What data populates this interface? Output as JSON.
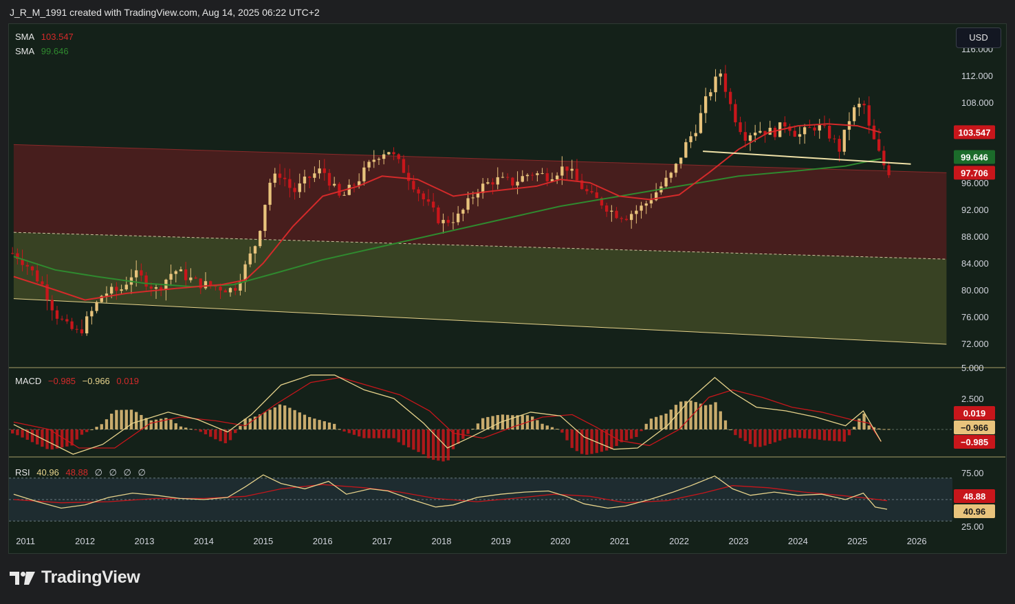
{
  "header": {
    "caption": "J_R_M_1991 created with TradingView.com, Aug 14, 2025 06:22 UTC+2"
  },
  "currency_button": "USD",
  "brand": "TradingView",
  "colors": {
    "up": "#e8c37c",
    "down": "#c8161b",
    "sma_fast": "#d42a2a",
    "sma_slow": "#2f8a2f",
    "macd_line": "#e8d48c",
    "signal_line": "#c8161b",
    "rsi_line": "#e8d48c",
    "rsi_ma": "#c8161b"
  },
  "chart_data": [
    {
      "type": "candlestick",
      "panel": "price",
      "x": [
        "2011",
        "2012",
        "2013",
        "2014",
        "2015",
        "2016",
        "2017",
        "2018",
        "2019",
        "2020",
        "2021",
        "2022",
        "2023",
        "2024",
        "2025",
        "2026"
      ],
      "y_ticks": [
        "72.000",
        "76.000",
        "80.000",
        "84.000",
        "88.000",
        "92.000",
        "96.000",
        "100.000",
        "104.000",
        "108.000",
        "112.000",
        "116.000"
      ],
      "ylim": [
        70,
        118
      ],
      "legend": [
        {
          "name": "SMA",
          "value": "103.547"
        },
        {
          "name": "SMA",
          "value": "99.646"
        }
      ],
      "price_tags": [
        {
          "value": "103.547",
          "kind": "sma_fast"
        },
        {
          "value": "99.646",
          "kind": "sma_slow"
        },
        {
          "value": "97.706",
          "kind": "last_price"
        }
      ],
      "channel_upper_line": [
        [
          2010.8,
          101.7
        ],
        [
          2026.5,
          97.5
        ]
      ],
      "channel_mid_line": [
        [
          2010.8,
          88.6
        ],
        [
          2026.5,
          84.6
        ]
      ],
      "channel_lower_line": [
        [
          2010.8,
          78.7
        ],
        [
          2026.5,
          71.9
        ]
      ],
      "neckline": [
        [
          2022.4,
          100.7
        ],
        [
          2025.9,
          98.8
        ]
      ],
      "close_path": [
        [
          2010.8,
          85.5
        ],
        [
          2011.0,
          84.0
        ],
        [
          2011.3,
          80.5
        ],
        [
          2011.5,
          76.5
        ],
        [
          2011.7,
          74.5
        ],
        [
          2011.9,
          73.5
        ],
        [
          2012.1,
          76.5
        ],
        [
          2012.3,
          79.5
        ],
        [
          2012.6,
          80.0
        ],
        [
          2012.8,
          82.5
        ],
        [
          2013.0,
          81.5
        ],
        [
          2013.2,
          80.0
        ],
        [
          2013.5,
          83.0
        ],
        [
          2013.7,
          82.0
        ],
        [
          2013.9,
          81.0
        ],
        [
          2014.2,
          80.5
        ],
        [
          2014.5,
          80.0
        ],
        [
          2014.7,
          83.5
        ],
        [
          2014.9,
          87.5
        ],
        [
          2015.1,
          96.0
        ],
        [
          2015.3,
          97.5
        ],
        [
          2015.5,
          94.5
        ],
        [
          2015.8,
          97.0
        ],
        [
          2016.0,
          98.0
        ],
        [
          2016.3,
          93.5
        ],
        [
          2016.6,
          96.5
        ],
        [
          2016.9,
          100.0
        ],
        [
          2017.1,
          101.0
        ],
        [
          2017.4,
          97.5
        ],
        [
          2017.7,
          93.5
        ],
        [
          2018.0,
          90.0
        ],
        [
          2018.3,
          91.0
        ],
        [
          2018.6,
          95.0
        ],
        [
          2018.9,
          96.5
        ],
        [
          2019.2,
          96.0
        ],
        [
          2019.5,
          97.5
        ],
        [
          2019.8,
          97.0
        ],
        [
          2020.1,
          98.5
        ],
        [
          2020.3,
          96.0
        ],
        [
          2020.5,
          94.0
        ],
        [
          2020.7,
          93.0
        ],
        [
          2020.9,
          91.5
        ],
        [
          2021.1,
          91.0
        ],
        [
          2021.4,
          92.5
        ],
        [
          2021.7,
          95.5
        ],
        [
          2021.9,
          97.5
        ],
        [
          2022.1,
          101.5
        ],
        [
          2022.3,
          104.5
        ],
        [
          2022.5,
          109.5
        ],
        [
          2022.7,
          112.5
        ],
        [
          2022.9,
          106.5
        ],
        [
          2023.1,
          103.0
        ],
        [
          2023.3,
          104.0
        ],
        [
          2023.6,
          103.5
        ],
        [
          2023.8,
          105.0
        ],
        [
          2024.0,
          103.0
        ],
        [
          2024.3,
          104.5
        ],
        [
          2024.5,
          103.5
        ],
        [
          2024.7,
          101.0
        ],
        [
          2024.9,
          106.5
        ],
        [
          2025.1,
          108.0
        ],
        [
          2025.2,
          104.0
        ],
        [
          2025.4,
          99.5
        ],
        [
          2025.5,
          97.7
        ]
      ],
      "sma_fast_path": [
        [
          2010.8,
          82.0
        ],
        [
          2011.5,
          80.0
        ],
        [
          2012.0,
          78.5
        ],
        [
          2012.7,
          79.5
        ],
        [
          2013.5,
          80.2
        ],
        [
          2014.3,
          80.8
        ],
        [
          2014.7,
          81.5
        ],
        [
          2015.0,
          84.0
        ],
        [
          2015.5,
          89.5
        ],
        [
          2016.0,
          94.0
        ],
        [
          2016.6,
          95.5
        ],
        [
          2017.0,
          97.0
        ],
        [
          2017.6,
          96.5
        ],
        [
          2018.2,
          94.0
        ],
        [
          2018.6,
          94.5
        ],
        [
          2019.1,
          95.0
        ],
        [
          2019.6,
          95.5
        ],
        [
          2020.0,
          96.5
        ],
        [
          2020.5,
          96.0
        ],
        [
          2021.0,
          94.0
        ],
        [
          2021.5,
          93.5
        ],
        [
          2022.0,
          94.2
        ],
        [
          2022.5,
          97.5
        ],
        [
          2023.0,
          101.0
        ],
        [
          2023.5,
          103.5
        ],
        [
          2024.0,
          104.5
        ],
        [
          2024.5,
          104.8
        ],
        [
          2025.0,
          104.5
        ],
        [
          2025.4,
          103.5
        ]
      ],
      "sma_slow_path": [
        [
          2010.8,
          85.0
        ],
        [
          2011.5,
          83.0
        ],
        [
          2012.2,
          82.0
        ],
        [
          2013.0,
          81.0
        ],
        [
          2013.8,
          80.5
        ],
        [
          2014.5,
          80.8
        ],
        [
          2015.2,
          82.5
        ],
        [
          2016.0,
          84.5
        ],
        [
          2017.0,
          86.5
        ],
        [
          2018.0,
          88.5
        ],
        [
          2019.0,
          90.5
        ],
        [
          2020.0,
          92.5
        ],
        [
          2021.0,
          94.0
        ],
        [
          2022.0,
          95.5
        ],
        [
          2023.0,
          97.0
        ],
        [
          2024.0,
          97.8
        ],
        [
          2024.8,
          98.5
        ],
        [
          2025.4,
          99.6
        ]
      ]
    },
    {
      "type": "macd",
      "panel": "macd",
      "legend": {
        "name": "MACD",
        "values": [
          "−0.985",
          "−0.966",
          "0.019"
        ]
      },
      "y_ticks": [
        "2.500",
        "5.000"
      ],
      "ylim": [
        -2.3,
        5.0
      ],
      "price_tags": [
        {
          "value": "0.019",
          "kind": "histogram"
        },
        {
          "value": "−0.966",
          "kind": "macd"
        },
        {
          "value": "−0.985",
          "kind": "signal"
        }
      ],
      "macd_path": [
        [
          2010.8,
          0.4
        ],
        [
          2011.3,
          -0.8
        ],
        [
          2011.8,
          -2.0
        ],
        [
          2012.3,
          -1.2
        ],
        [
          2012.8,
          0.5
        ],
        [
          2013.4,
          1.4
        ],
        [
          2013.9,
          0.8
        ],
        [
          2014.4,
          -0.2
        ],
        [
          2014.8,
          1.2
        ],
        [
          2015.3,
          3.6
        ],
        [
          2015.8,
          4.4
        ],
        [
          2016.2,
          4.4
        ],
        [
          2016.7,
          3.2
        ],
        [
          2017.2,
          2.5
        ],
        [
          2017.7,
          0.5
        ],
        [
          2018.1,
          -1.5
        ],
        [
          2018.5,
          -0.6
        ],
        [
          2019.0,
          0.6
        ],
        [
          2019.5,
          1.4
        ],
        [
          2020.0,
          1.1
        ],
        [
          2020.4,
          -0.6
        ],
        [
          2020.9,
          -1.6
        ],
        [
          2021.3,
          -1.5
        ],
        [
          2021.8,
          0.3
        ],
        [
          2022.2,
          2.5
        ],
        [
          2022.6,
          4.2
        ],
        [
          2022.9,
          3.0
        ],
        [
          2023.3,
          1.8
        ],
        [
          2023.8,
          1.5
        ],
        [
          2024.3,
          1.0
        ],
        [
          2024.8,
          0.3
        ],
        [
          2025.1,
          1.5
        ],
        [
          2025.4,
          -0.966
        ]
      ],
      "signal_path": [
        [
          2010.8,
          0.6
        ],
        [
          2011.4,
          0.0
        ],
        [
          2011.9,
          -1.5
        ],
        [
          2012.5,
          -1.5
        ],
        [
          2013.1,
          0.5
        ],
        [
          2013.6,
          1.0
        ],
        [
          2014.2,
          0.7
        ],
        [
          2014.7,
          0.3
        ],
        [
          2015.2,
          2.0
        ],
        [
          2015.8,
          3.8
        ],
        [
          2016.3,
          4.2
        ],
        [
          2016.8,
          3.5
        ],
        [
          2017.3,
          2.8
        ],
        [
          2017.8,
          1.5
        ],
        [
          2018.2,
          -0.3
        ],
        [
          2018.7,
          -0.7
        ],
        [
          2019.2,
          0.2
        ],
        [
          2019.7,
          1.0
        ],
        [
          2020.2,
          1.2
        ],
        [
          2020.6,
          0.2
        ],
        [
          2021.0,
          -0.9
        ],
        [
          2021.5,
          -1.3
        ],
        [
          2022.0,
          0.0
        ],
        [
          2022.5,
          2.6
        ],
        [
          2022.9,
          3.2
        ],
        [
          2023.4,
          2.6
        ],
        [
          2023.9,
          1.8
        ],
        [
          2024.4,
          1.4
        ],
        [
          2024.9,
          0.8
        ],
        [
          2025.2,
          0.5
        ],
        [
          2025.4,
          -0.985
        ]
      ]
    },
    {
      "type": "rsi",
      "panel": "rsi",
      "legend": {
        "name": "RSI",
        "values": [
          "40.96",
          "48.88"
        ],
        "extra": [
          "∅",
          "∅",
          "∅",
          "∅"
        ]
      },
      "y_ticks": [
        "25.00",
        "75.00"
      ],
      "ylim": [
        24,
        80
      ],
      "bands": {
        "upper": 70,
        "middle": 50,
        "lower": 30
      },
      "price_tags": [
        {
          "value": "48.88",
          "kind": "rsi_ma"
        },
        {
          "value": "40.96",
          "kind": "rsi"
        }
      ],
      "rsi_path": [
        [
          2010.8,
          55
        ],
        [
          2011.2,
          48
        ],
        [
          2011.6,
          42
        ],
        [
          2012.0,
          45
        ],
        [
          2012.4,
          52
        ],
        [
          2012.8,
          56
        ],
        [
          2013.2,
          54
        ],
        [
          2013.6,
          51
        ],
        [
          2014.0,
          50
        ],
        [
          2014.4,
          52
        ],
        [
          2014.7,
          62
        ],
        [
          2015.0,
          73
        ],
        [
          2015.3,
          65
        ],
        [
          2015.7,
          60
        ],
        [
          2016.1,
          67
        ],
        [
          2016.4,
          55
        ],
        [
          2016.8,
          60
        ],
        [
          2017.1,
          58
        ],
        [
          2017.5,
          50
        ],
        [
          2017.9,
          43
        ],
        [
          2018.2,
          45
        ],
        [
          2018.6,
          52
        ],
        [
          2019.0,
          55
        ],
        [
          2019.4,
          57
        ],
        [
          2019.8,
          58
        ],
        [
          2020.1,
          53
        ],
        [
          2020.4,
          46
        ],
        [
          2020.8,
          42
        ],
        [
          2021.1,
          44
        ],
        [
          2021.5,
          50
        ],
        [
          2021.9,
          57
        ],
        [
          2022.2,
          63
        ],
        [
          2022.6,
          72
        ],
        [
          2022.9,
          60
        ],
        [
          2023.2,
          54
        ],
        [
          2023.6,
          57
        ],
        [
          2024.0,
          54
        ],
        [
          2024.4,
          55
        ],
        [
          2024.8,
          50
        ],
        [
          2025.1,
          56
        ],
        [
          2025.3,
          43
        ],
        [
          2025.5,
          40.96
        ]
      ],
      "rsi_ma_path": [
        [
          2010.8,
          50
        ],
        [
          2011.6,
          47
        ],
        [
          2012.4,
          48
        ],
        [
          2013.2,
          51
        ],
        [
          2014.0,
          51
        ],
        [
          2014.7,
          53
        ],
        [
          2015.3,
          60
        ],
        [
          2016.0,
          64
        ],
        [
          2016.7,
          61
        ],
        [
          2017.3,
          57
        ],
        [
          2017.9,
          51
        ],
        [
          2018.6,
          48
        ],
        [
          2019.2,
          51
        ],
        [
          2019.9,
          55
        ],
        [
          2020.5,
          53
        ],
        [
          2021.1,
          47
        ],
        [
          2021.8,
          49
        ],
        [
          2022.4,
          56
        ],
        [
          2022.9,
          63
        ],
        [
          2023.5,
          61
        ],
        [
          2024.1,
          57
        ],
        [
          2024.7,
          54
        ],
        [
          2025.2,
          51
        ],
        [
          2025.5,
          48.88
        ]
      ]
    }
  ]
}
